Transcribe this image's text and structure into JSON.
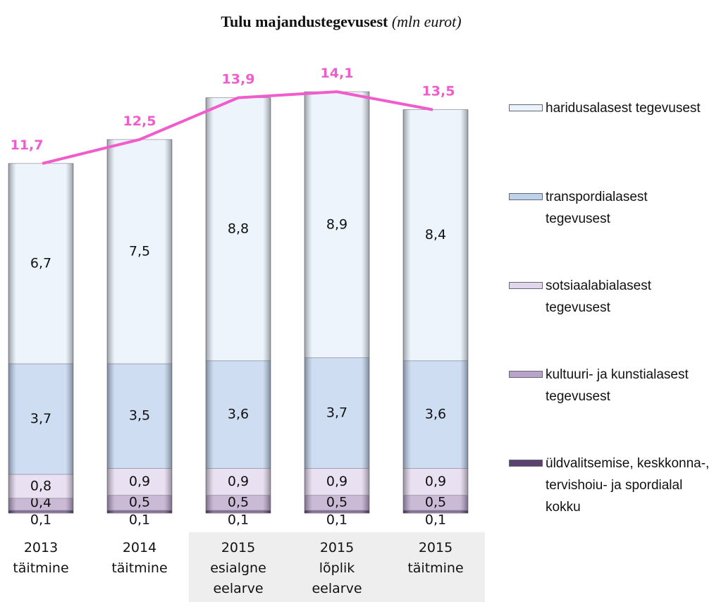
{
  "chart_data": {
    "type": "stacked-bar-line",
    "title": "Tulu majandustegevusest",
    "subtitle": "(mln eurot)",
    "categories": [
      [
        "2013",
        "täitmine"
      ],
      [
        "2014",
        "täitmine"
      ],
      [
        "2015",
        "esialgne",
        "eelarve"
      ],
      [
        "2015",
        "lõplik",
        "eelarve"
      ],
      [
        "2015",
        "täitmine"
      ]
    ],
    "highlight_categories": [
      2,
      3,
      4
    ],
    "series": [
      {
        "name": "üldvalitsemise, keskkonna-, tervishoiu- ja spordialal kokku",
        "color": "#5b4170",
        "values": [
          0.1,
          0.1,
          0.1,
          0.1,
          0.1
        ],
        "value_labels": [
          "0,1",
          "0,1",
          "0,1",
          "0,1",
          "0,1"
        ]
      },
      {
        "name": "kultuuri- ja kunstialasest tegevusest",
        "color": "#b9a3c9",
        "values": [
          0.4,
          0.5,
          0.5,
          0.5,
          0.5
        ],
        "value_labels": [
          "0,4",
          "0,5",
          "0,5",
          "0,5",
          "0,5"
        ]
      },
      {
        "name": "sotsiaalabialasest tegevusest",
        "color": "#e2d6ec",
        "values": [
          0.8,
          0.9,
          0.9,
          0.9,
          0.9
        ],
        "value_labels": [
          "0,8",
          "0,9",
          "0,9",
          "0,9",
          "0,9"
        ]
      },
      {
        "name": "transpordialasest tegevusest",
        "color": "#bed2ec",
        "values": [
          3.7,
          3.5,
          3.6,
          3.7,
          3.6
        ],
        "value_labels": [
          "3,7",
          "3,5",
          "3,6",
          "3,7",
          "3,6"
        ]
      },
      {
        "name": "haridusalasest tegevusest",
        "color": "#e9f1fb",
        "values": [
          6.7,
          7.5,
          8.8,
          8.9,
          8.4
        ],
        "value_labels": [
          "6,7",
          "7,5",
          "8,8",
          "8,9",
          "8,4"
        ]
      }
    ],
    "totals": {
      "color": "#f05ccb",
      "values": [
        11.7,
        12.5,
        13.9,
        14.1,
        13.5
      ],
      "value_labels": [
        "11,7",
        "12,5",
        "13,9",
        "14,1",
        "13,5"
      ]
    },
    "ylim": [
      0,
      15
    ]
  }
}
